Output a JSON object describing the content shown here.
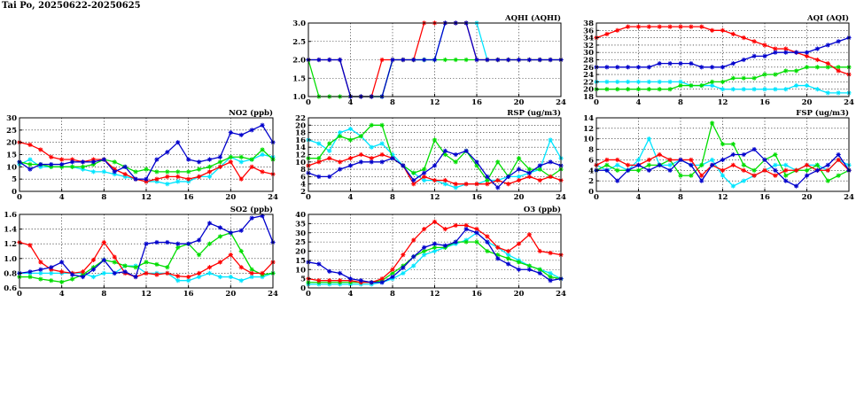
{
  "page_title": "Tai Po, 20250622-20250625",
  "series_colors": [
    "#00e5ff",
    "#00dd00",
    "#ff0000",
    "#0000cc"
  ],
  "chart_data": [
    {
      "id": "aqhi",
      "type": "line",
      "title": "AQHI (AQHI)",
      "xlabel": "",
      "ylabel": "",
      "xlim": [
        0,
        24
      ],
      "ylim": [
        1.0,
        3.0
      ],
      "xticks": [
        0,
        4,
        8,
        12,
        16,
        20,
        24
      ],
      "yticks": [
        1.0,
        1.5,
        2.0,
        2.5,
        3.0
      ],
      "ytick_labels": [
        "1.0",
        "1.5",
        "2.0",
        "2.5",
        "3.0"
      ],
      "grid": true,
      "x": [
        0,
        1,
        2,
        3,
        4,
        5,
        6,
        7,
        8,
        9,
        10,
        11,
        12,
        13,
        14,
        15,
        16,
        17,
        18,
        19,
        20,
        21,
        22,
        23,
        24
      ],
      "series": [
        {
          "values": [
            2,
            2,
            2,
            2,
            1,
            1,
            1,
            1,
            2,
            2,
            2,
            2,
            2,
            3,
            3,
            3,
            3,
            2,
            2,
            2,
            2,
            2,
            2,
            2,
            2
          ]
        },
        {
          "values": [
            2,
            1,
            1,
            1,
            1,
            1,
            1,
            1,
            2,
            2,
            2,
            2,
            2,
            2,
            2,
            2,
            2,
            2,
            2,
            2,
            2,
            2,
            2,
            2,
            2
          ]
        },
        {
          "values": [
            2,
            2,
            2,
            2,
            1,
            1,
            1,
            2,
            2,
            2,
            2,
            3,
            3,
            3,
            3,
            3,
            2,
            2,
            2,
            2,
            2,
            2,
            2,
            2,
            2
          ]
        },
        {
          "values": [
            2,
            2,
            2,
            2,
            1,
            1,
            1,
            1,
            2,
            2,
            2,
            2,
            2,
            3,
            3,
            3,
            2,
            2,
            2,
            2,
            2,
            2,
            2,
            2,
            2
          ]
        }
      ]
    },
    {
      "id": "aqi",
      "type": "line",
      "title": "AQI (AQI)",
      "xlabel": "",
      "ylabel": "",
      "xlim": [
        0,
        24
      ],
      "ylim": [
        18,
        38
      ],
      "xticks": [
        0,
        4,
        8,
        12,
        16,
        20,
        24
      ],
      "yticks": [
        18,
        20,
        22,
        24,
        26,
        28,
        30,
        32,
        34,
        36,
        38
      ],
      "grid": true,
      "x": [
        0,
        1,
        2,
        3,
        4,
        5,
        6,
        7,
        8,
        9,
        10,
        11,
        12,
        13,
        14,
        15,
        16,
        17,
        18,
        19,
        20,
        21,
        22,
        23,
        24
      ],
      "series": [
        {
          "values": [
            22,
            22,
            22,
            22,
            22,
            22,
            22,
            22,
            22,
            21,
            21,
            21,
            20,
            20,
            20,
            20,
            20,
            20,
            20,
            21,
            21,
            20,
            19,
            19,
            19
          ]
        },
        {
          "values": [
            20,
            20,
            20,
            20,
            20,
            20,
            20,
            20,
            21,
            21,
            21,
            22,
            22,
            23,
            23,
            23,
            24,
            24,
            25,
            25,
            26,
            26,
            26,
            26,
            26
          ]
        },
        {
          "values": [
            34,
            35,
            36,
            37,
            37,
            37,
            37,
            37,
            37,
            37,
            37,
            36,
            36,
            35,
            34,
            33,
            32,
            31,
            31,
            30,
            29,
            28,
            27,
            25,
            24
          ]
        },
        {
          "values": [
            26,
            26,
            26,
            26,
            26,
            26,
            27,
            27,
            27,
            27,
            26,
            26,
            26,
            27,
            28,
            29,
            29,
            30,
            30,
            30,
            30,
            31,
            32,
            33,
            34
          ]
        }
      ]
    },
    {
      "id": "no2",
      "type": "line",
      "title": "NO2 (ppb)",
      "xlabel": "",
      "ylabel": "",
      "xlim": [
        0,
        24
      ],
      "ylim": [
        0,
        30
      ],
      "xticks": [
        0,
        4,
        8,
        12,
        16,
        20,
        24
      ],
      "yticks": [
        0,
        5,
        10,
        15,
        20,
        25,
        30
      ],
      "grid": true,
      "x": [
        0,
        1,
        2,
        3,
        4,
        5,
        6,
        7,
        8,
        9,
        10,
        11,
        12,
        13,
        14,
        15,
        16,
        17,
        18,
        19,
        20,
        21,
        22,
        23,
        24
      ],
      "series": [
        {
          "values": [
            11,
            13,
            10,
            10,
            10,
            10,
            9,
            8,
            8,
            7,
            6,
            5,
            4,
            4,
            3,
            4,
            4,
            6,
            6,
            10,
            14,
            12,
            13,
            15,
            14
          ]
        },
        {
          "values": [
            12,
            11,
            11,
            10,
            10,
            10,
            10,
            11,
            13,
            12,
            10,
            8,
            9,
            8,
            8,
            8,
            8,
            9,
            10,
            12,
            14,
            14,
            13,
            17,
            13
          ]
        },
        {
          "values": [
            20,
            19,
            17,
            14,
            13,
            13,
            12,
            13,
            13,
            9,
            7,
            5,
            4,
            5,
            6,
            6,
            5,
            6,
            8,
            10,
            12,
            5,
            10,
            8,
            7
          ]
        },
        {
          "values": [
            12,
            9,
            11,
            11,
            11,
            12,
            12,
            12,
            13,
            8,
            10,
            5,
            5,
            13,
            16,
            20,
            13,
            12,
            13,
            14,
            24,
            23,
            25,
            27,
            20
          ]
        }
      ]
    },
    {
      "id": "rsp",
      "type": "line",
      "title": "RSP (ug/m3)",
      "xlabel": "",
      "ylabel": "",
      "xlim": [
        0,
        24
      ],
      "ylim": [
        2,
        22
      ],
      "xticks": [
        0,
        4,
        8,
        12,
        16,
        20,
        24
      ],
      "yticks": [
        2,
        4,
        6,
        8,
        10,
        12,
        14,
        16,
        18,
        20,
        22
      ],
      "grid": true,
      "x": [
        0,
        1,
        2,
        3,
        4,
        5,
        6,
        7,
        8,
        9,
        10,
        11,
        12,
        13,
        14,
        15,
        16,
        17,
        18,
        19,
        20,
        21,
        22,
        23,
        24
      ],
      "series": [
        {
          "values": [
            16,
            15,
            13,
            18,
            19,
            17,
            14,
            15,
            12,
            9,
            7,
            5,
            5,
            4,
            3,
            4,
            4,
            5,
            5,
            6,
            6,
            7,
            8,
            16,
            11
          ]
        },
        {
          "values": [
            11,
            11,
            15,
            17,
            16,
            17,
            20,
            20,
            11,
            9,
            7,
            8,
            16,
            12,
            10,
            13,
            9,
            5,
            10,
            6,
            11,
            8,
            8,
            6,
            8
          ]
        },
        {
          "values": [
            9,
            10,
            11,
            10,
            11,
            12,
            11,
            12,
            11,
            9,
            4,
            6,
            5,
            5,
            4,
            4,
            4,
            4,
            5,
            4,
            5,
            6,
            5,
            6,
            5
          ]
        },
        {
          "values": [
            7,
            6,
            6,
            8,
            9,
            10,
            10,
            10,
            11,
            9,
            5,
            7,
            9,
            13,
            12,
            13,
            10,
            6,
            3,
            6,
            8,
            7,
            9,
            10,
            9
          ]
        }
      ]
    },
    {
      "id": "fsp",
      "type": "line",
      "title": "FSP (ug/m3)",
      "xlabel": "",
      "ylabel": "",
      "xlim": [
        0,
        24
      ],
      "ylim": [
        0,
        14
      ],
      "xticks": [
        0,
        4,
        8,
        12,
        16,
        20,
        24
      ],
      "yticks": [
        0,
        2,
        4,
        6,
        8,
        10,
        12,
        14
      ],
      "grid": true,
      "x": [
        0,
        1,
        2,
        3,
        4,
        5,
        6,
        7,
        8,
        9,
        10,
        11,
        12,
        13,
        14,
        15,
        16,
        17,
        18,
        19,
        20,
        21,
        22,
        23,
        24
      ],
      "series": [
        {
          "values": [
            5,
            4,
            5,
            4,
            6,
            10,
            5,
            5,
            6,
            5,
            5,
            6,
            3,
            1,
            2,
            3,
            4,
            5,
            5,
            4,
            5,
            5,
            4,
            6,
            5
          ]
        },
        {
          "values": [
            4,
            5,
            4,
            4,
            4,
            5,
            5,
            6,
            3,
            3,
            5,
            13,
            9,
            9,
            5,
            4,
            6,
            7,
            3,
            4,
            4,
            5,
            2,
            3,
            4
          ]
        },
        {
          "values": [
            5,
            6,
            6,
            5,
            5,
            6,
            7,
            6,
            6,
            6,
            3,
            5,
            4,
            5,
            4,
            3,
            4,
            3,
            4,
            4,
            5,
            4,
            4,
            6,
            4
          ]
        },
        {
          "values": [
            4,
            4,
            2,
            4,
            5,
            4,
            5,
            4,
            6,
            5,
            2,
            5,
            6,
            7,
            7,
            8,
            6,
            4,
            2,
            1,
            3,
            4,
            5,
            7,
            4
          ]
        }
      ]
    },
    {
      "id": "so2",
      "type": "line",
      "title": "SO2 (ppb)",
      "xlabel": "",
      "ylabel": "",
      "xlim": [
        0,
        24
      ],
      "ylim": [
        0.6,
        1.6
      ],
      "xticks": [
        0,
        4,
        8,
        12,
        16,
        20,
        24
      ],
      "yticks": [
        0.6,
        0.8,
        1.0,
        1.2,
        1.4,
        1.6
      ],
      "ytick_labels": [
        "0.6",
        "0.8",
        "1.0",
        "1.2",
        "1.4",
        "1.6"
      ],
      "grid": true,
      "x": [
        0,
        1,
        2,
        3,
        4,
        5,
        6,
        7,
        8,
        9,
        10,
        11,
        12,
        13,
        14,
        15,
        16,
        17,
        18,
        19,
        20,
        21,
        22,
        23,
        24
      ],
      "series": [
        {
          "values": [
            0.8,
            0.8,
            0.8,
            0.8,
            0.8,
            0.8,
            0.8,
            0.75,
            0.8,
            0.8,
            0.9,
            0.9,
            0.8,
            0.8,
            0.8,
            0.7,
            0.7,
            0.75,
            0.8,
            0.75,
            0.75,
            0.7,
            0.75,
            0.75,
            0.8
          ]
        },
        {
          "values": [
            0.75,
            0.75,
            0.72,
            0.7,
            0.68,
            0.72,
            0.78,
            0.88,
            0.98,
            0.95,
            0.9,
            0.88,
            0.95,
            0.92,
            0.88,
            1.15,
            1.2,
            1.05,
            1.2,
            1.3,
            1.35,
            1.1,
            0.85,
            0.78,
            0.8
          ]
        },
        {
          "values": [
            1.22,
            1.18,
            0.95,
            0.85,
            0.82,
            0.8,
            0.82,
            0.98,
            1.22,
            1.02,
            0.8,
            0.75,
            0.8,
            0.78,
            0.8,
            0.76,
            0.75,
            0.8,
            0.88,
            0.95,
            1.05,
            0.88,
            0.8,
            0.8,
            0.95
          ]
        },
        {
          "values": [
            0.8,
            0.82,
            0.85,
            0.88,
            0.95,
            0.78,
            0.75,
            0.85,
            0.98,
            0.8,
            0.82,
            0.75,
            1.2,
            1.22,
            1.22,
            1.2,
            1.2,
            1.25,
            1.48,
            1.42,
            1.35,
            1.38,
            1.55,
            1.58,
            1.22
          ]
        }
      ]
    },
    {
      "id": "o3",
      "type": "line",
      "title": "O3 (ppb)",
      "xlabel": "",
      "ylabel": "",
      "xlim": [
        0,
        24
      ],
      "ylim": [
        0,
        40
      ],
      "xticks": [
        0,
        4,
        8,
        12,
        16,
        20,
        24
      ],
      "yticks": [
        0,
        5,
        10,
        15,
        20,
        25,
        30,
        35,
        40
      ],
      "grid": true,
      "x": [
        0,
        1,
        2,
        3,
        4,
        5,
        6,
        7,
        8,
        9,
        10,
        11,
        12,
        13,
        14,
        15,
        16,
        17,
        18,
        19,
        20,
        21,
        22,
        23,
        24
      ],
      "series": [
        {
          "values": [
            2,
            2,
            2,
            2,
            2,
            2,
            2,
            3,
            5,
            8,
            12,
            18,
            20,
            22,
            24,
            26,
            30,
            25,
            22,
            18,
            15,
            12,
            10,
            8,
            5
          ]
        },
        {
          "values": [
            3,
            3,
            3,
            3,
            3,
            3,
            3,
            4,
            8,
            12,
            17,
            20,
            22,
            22,
            25,
            25,
            25,
            20,
            18,
            16,
            14,
            12,
            10,
            6,
            5
          ]
        },
        {
          "values": [
            5,
            4,
            4,
            4,
            4,
            3,
            3,
            5,
            10,
            18,
            26,
            32,
            36,
            32,
            34,
            34,
            32,
            28,
            22,
            20,
            24,
            29,
            20,
            19,
            18
          ]
        },
        {
          "values": [
            14,
            13,
            9,
            8,
            5,
            4,
            3,
            3,
            6,
            11,
            17,
            22,
            24,
            23,
            25,
            32,
            30,
            25,
            16,
            13,
            10,
            10,
            8,
            4,
            5
          ]
        }
      ]
    }
  ]
}
